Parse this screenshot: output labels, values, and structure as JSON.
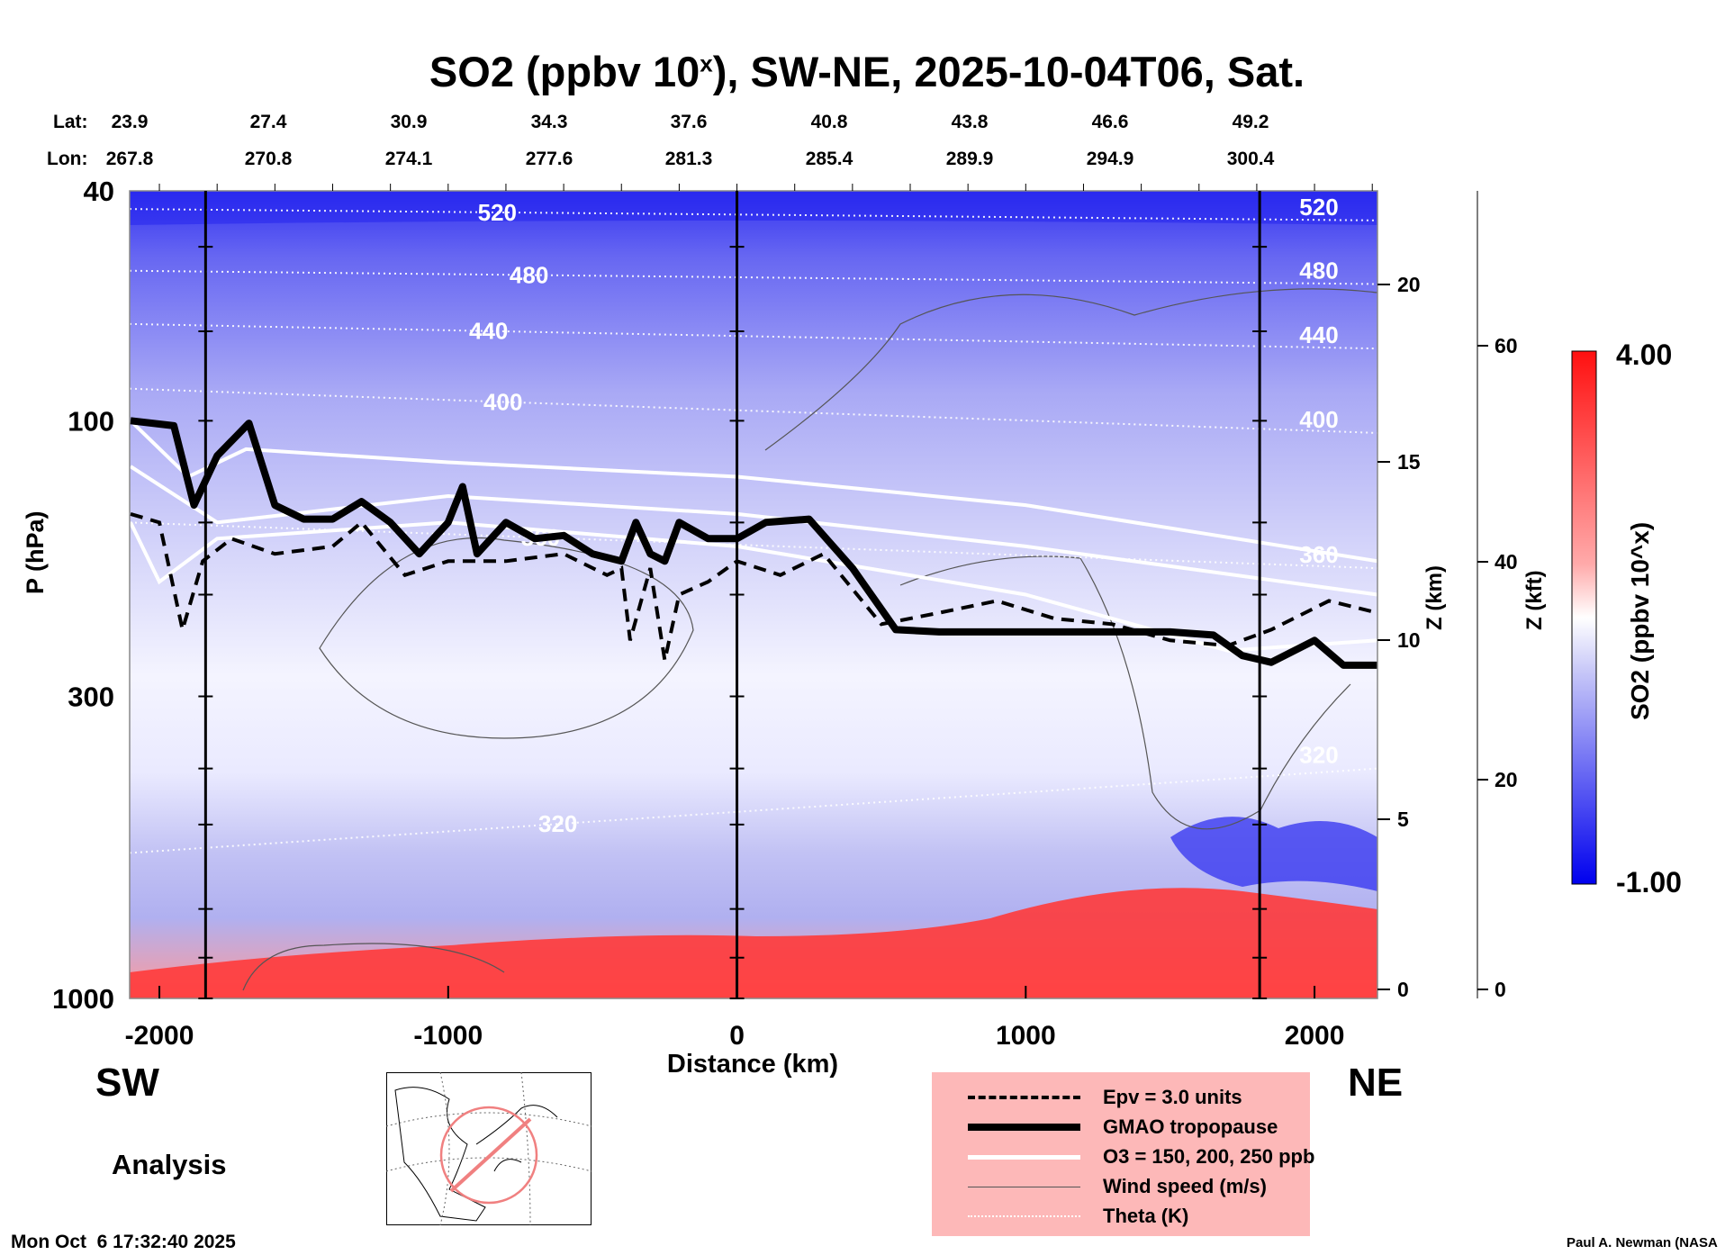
{
  "header": {
    "title_main": "SO2 (ppbv 10",
    "title_sup": "x",
    "title_rest": "), SW-NE, 2025-10-04T06, Sat."
  },
  "coords": {
    "lat_label": "Lat:",
    "lon_label": "Lon:",
    "lat": [
      "23.9",
      "27.4",
      "30.9",
      "34.3",
      "37.6",
      "40.8",
      "43.8",
      "46.6",
      "49.2"
    ],
    "lon": [
      "267.8",
      "270.8",
      "274.1",
      "277.6",
      "281.3",
      "285.4",
      "289.9",
      "294.9",
      "300.4"
    ]
  },
  "labels": {
    "sw": "SW",
    "ne": "NE",
    "analysis": "Analysis",
    "timestamp": "Mon Oct  6 17:32:40 2025",
    "credit": "Paul A. Newman (NASA"
  },
  "legend": {
    "items": [
      {
        "label": "Epv = 3.0 units",
        "style": "dashed"
      },
      {
        "label": "GMAO tropopause",
        "style": "thick"
      },
      {
        "label": "O3 = 150, 200, 250 ppb",
        "style": "white"
      },
      {
        "label": "Wind speed (m/s)",
        "style": "thin"
      },
      {
        "label": "Theta (K)",
        "style": "dotted"
      }
    ]
  },
  "chart_data": {
    "type": "heatmap",
    "title": "SO2 (ppbv 10^x), SW-NE, 2025-10-04T06, Sat.",
    "xlabel": "Distance (km)",
    "ylabel": "P (hPa)",
    "y2label": "Z (km)",
    "y3label": "Z (kft)",
    "colorbar_label": "SO2 (ppbv 10^x)",
    "xlim": [
      -2103,
      2218
    ],
    "ylim": [
      40,
      1000
    ],
    "yscale": "log",
    "xticks": [
      -2000,
      -1000,
      0,
      1000,
      2000
    ],
    "xtick_labels": [
      "-2000",
      "-1000",
      "0",
      "1000",
      "2000"
    ],
    "yticks": [
      40,
      100,
      300,
      1000
    ],
    "ytick_labels": [
      "40",
      "100",
      "300",
      "1000"
    ],
    "zkm_ticks": [
      "0",
      "5",
      "10",
      "15",
      "20"
    ],
    "zkft_ticks": [
      "0",
      "20",
      "40",
      "60"
    ],
    "colorbar": {
      "min_label": "-1.00",
      "max_label": "4.00",
      "min": -1.0,
      "max": 4.0,
      "colors": [
        "#0000ff",
        "#ffffff",
        "#ff0000"
      ]
    },
    "section_lines_km": [
      -1840,
      0,
      1810
    ],
    "tropopause": [
      [
        -2100,
        100
      ],
      [
        -1950,
        102
      ],
      [
        -1880,
        140
      ],
      [
        -1800,
        115
      ],
      [
        -1690,
        101
      ],
      [
        -1600,
        140
      ],
      [
        -1500,
        148
      ],
      [
        -1400,
        148
      ],
      [
        -1300,
        138
      ],
      [
        -1200,
        150
      ],
      [
        -1100,
        170
      ],
      [
        -1000,
        150
      ],
      [
        -950,
        130
      ],
      [
        -900,
        170
      ],
      [
        -800,
        150
      ],
      [
        -700,
        160
      ],
      [
        -600,
        158
      ],
      [
        -500,
        170
      ],
      [
        -400,
        175
      ],
      [
        -350,
        150
      ],
      [
        -300,
        170
      ],
      [
        -250,
        175
      ],
      [
        -200,
        150
      ],
      [
        -100,
        160
      ],
      [
        0,
        160
      ],
      [
        100,
        150
      ],
      [
        250,
        148
      ],
      [
        400,
        180
      ],
      [
        550,
        230
      ],
      [
        700,
        232
      ],
      [
        900,
        232
      ],
      [
        1500,
        232
      ],
      [
        1650,
        235
      ],
      [
        1750,
        255
      ],
      [
        1850,
        262
      ],
      [
        2000,
        240
      ],
      [
        2100,
        265
      ],
      [
        2218,
        265
      ]
    ],
    "epv": [
      [
        -2100,
        145
      ],
      [
        -2000,
        150
      ],
      [
        -1920,
        230
      ],
      [
        -1850,
        175
      ],
      [
        -1750,
        160
      ],
      [
        -1600,
        170
      ],
      [
        -1400,
        165
      ],
      [
        -1300,
        150
      ],
      [
        -1150,
        185
      ],
      [
        -1000,
        175
      ],
      [
        -800,
        175
      ],
      [
        -600,
        170
      ],
      [
        -450,
        185
      ],
      [
        -400,
        180
      ],
      [
        -370,
        240
      ],
      [
        -300,
        180
      ],
      [
        -250,
        260
      ],
      [
        -200,
        200
      ],
      [
        -100,
        190
      ],
      [
        0,
        175
      ],
      [
        150,
        185
      ],
      [
        300,
        170
      ],
      [
        500,
        225
      ],
      [
        700,
        215
      ],
      [
        900,
        205
      ],
      [
        1100,
        220
      ],
      [
        1300,
        225
      ],
      [
        1500,
        240
      ],
      [
        1700,
        245
      ],
      [
        1850,
        230
      ],
      [
        2050,
        205
      ],
      [
        2218,
        215
      ]
    ],
    "ozone": [
      [
        [
          -2100,
          100
        ],
        [
          -1900,
          125
        ],
        [
          -1700,
          112
        ],
        [
          -1000,
          118
        ],
        [
          0,
          125
        ],
        [
          1000,
          140
        ],
        [
          2218,
          175
        ]
      ],
      [
        [
          -2100,
          120
        ],
        [
          -1800,
          150
        ],
        [
          -1000,
          135
        ],
        [
          0,
          145
        ],
        [
          1000,
          165
        ],
        [
          2218,
          200
        ]
      ],
      [
        [
          -2100,
          150
        ],
        [
          -2000,
          190
        ],
        [
          -1800,
          160
        ],
        [
          -1000,
          150
        ],
        [
          0,
          165
        ],
        [
          1000,
          200
        ],
        [
          1700,
          250
        ],
        [
          2218,
          240
        ]
      ]
    ],
    "theta": [
      {
        "label": "520",
        "p_left": 43,
        "p_right": 45,
        "label_x": -830
      },
      {
        "label": "480",
        "p_left": 55,
        "p_right": 58,
        "label_x": -720
      },
      {
        "label": "440",
        "p_left": 68,
        "p_right": 75,
        "label_x": -860
      },
      {
        "label": "400",
        "p_left": 88,
        "p_right": 105,
        "label_x": -810
      },
      {
        "label": "360",
        "p_left": 150,
        "p_right": 180,
        "label_x": -680
      },
      {
        "label": "320",
        "p_left": 560,
        "p_right": 400,
        "label_x": -620
      }
    ]
  }
}
